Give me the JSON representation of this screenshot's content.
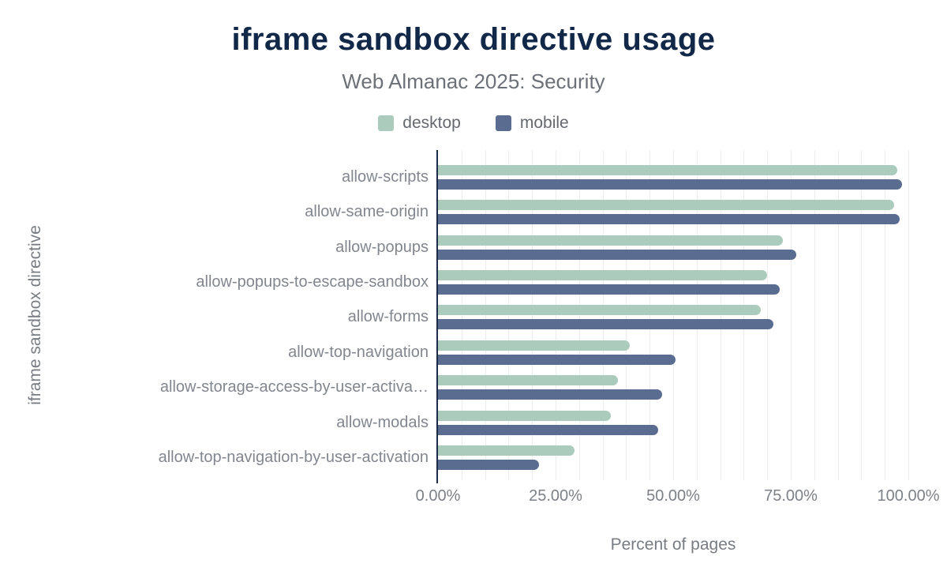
{
  "chart_data": {
    "type": "bar",
    "orientation": "horizontal",
    "title": "iframe sandbox directive usage",
    "subtitle": "Web Almanac 2025: Security",
    "xlabel": "Percent of pages",
    "ylabel": "iframe sandbox directive",
    "xlim": [
      0,
      100
    ],
    "x_ticks": [
      {
        "label": "0.00%",
        "value": 0
      },
      {
        "label": "25.00%",
        "value": 25
      },
      {
        "label": "50.00%",
        "value": 50
      },
      {
        "label": "75.00%",
        "value": 75
      },
      {
        "label": "100.00%",
        "value": 100
      }
    ],
    "grid": {
      "vertical_minor_step_percent": 5,
      "color": "#ededef"
    },
    "legend_position": "top",
    "categories": [
      "allow-scripts",
      "allow-same-origin",
      "allow-popups",
      "allow-popups-to-escape-sandbox",
      "allow-forms",
      "allow-top-navigation",
      "allow-storage-access-by-user-activa…",
      "allow-modals",
      "allow-top-navigation-by-user-activation"
    ],
    "series": [
      {
        "name": "desktop",
        "color": "#abcbbc",
        "values": [
          97.6,
          96.9,
          73.4,
          70.0,
          68.7,
          40.8,
          38.2,
          36.8,
          29.1
        ]
      },
      {
        "name": "mobile",
        "color": "#5a6c90",
        "values": [
          98.7,
          98.2,
          76.2,
          72.6,
          71.3,
          50.5,
          47.6,
          46.8,
          21.4
        ]
      }
    ],
    "colors": {
      "title": "#122849",
      "axis_line": "#1e2c49",
      "label_text": "#82868e",
      "background": "#ffffff"
    }
  }
}
